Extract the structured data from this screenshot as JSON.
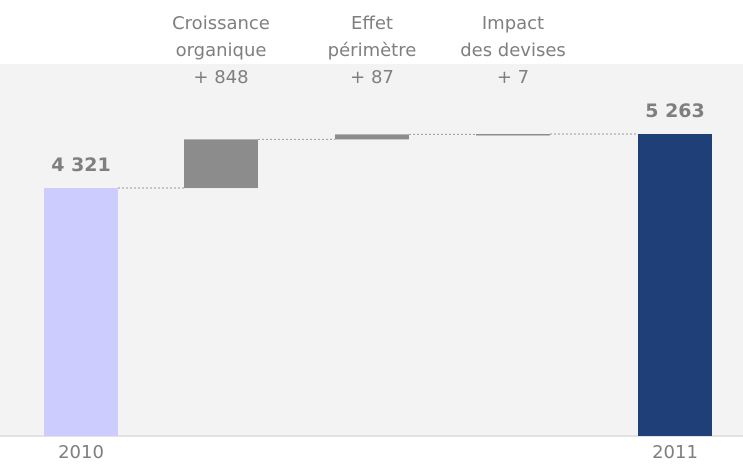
{
  "chart_data": {
    "type": "waterfall",
    "title": "",
    "bars": [
      {
        "category": "2010",
        "label": "4 321",
        "value": 4321,
        "kind": "total",
        "color": "#ccccff"
      },
      {
        "category": [
          "Croissance",
          "organique"
        ],
        "label": "+ 848",
        "value": 848,
        "kind": "delta",
        "color": "#8c8c8c"
      },
      {
        "category": [
          "Effet",
          "périmètre"
        ],
        "label": "+ 87",
        "value": 87,
        "kind": "delta",
        "color": "#8c8c8c"
      },
      {
        "category": [
          "Impact",
          "des devises"
        ],
        "label": "+ 7",
        "value": 7,
        "kind": "delta",
        "color": "#8c8c8c"
      },
      {
        "category": "2011",
        "label": "5 263",
        "value": 5263,
        "kind": "total",
        "color": "#1f3f78"
      }
    ],
    "colors": {
      "start_total": "#ccccff",
      "delta": "#8c8c8c",
      "end_total": "#1f3f78",
      "text": "#7f7f7f"
    }
  }
}
